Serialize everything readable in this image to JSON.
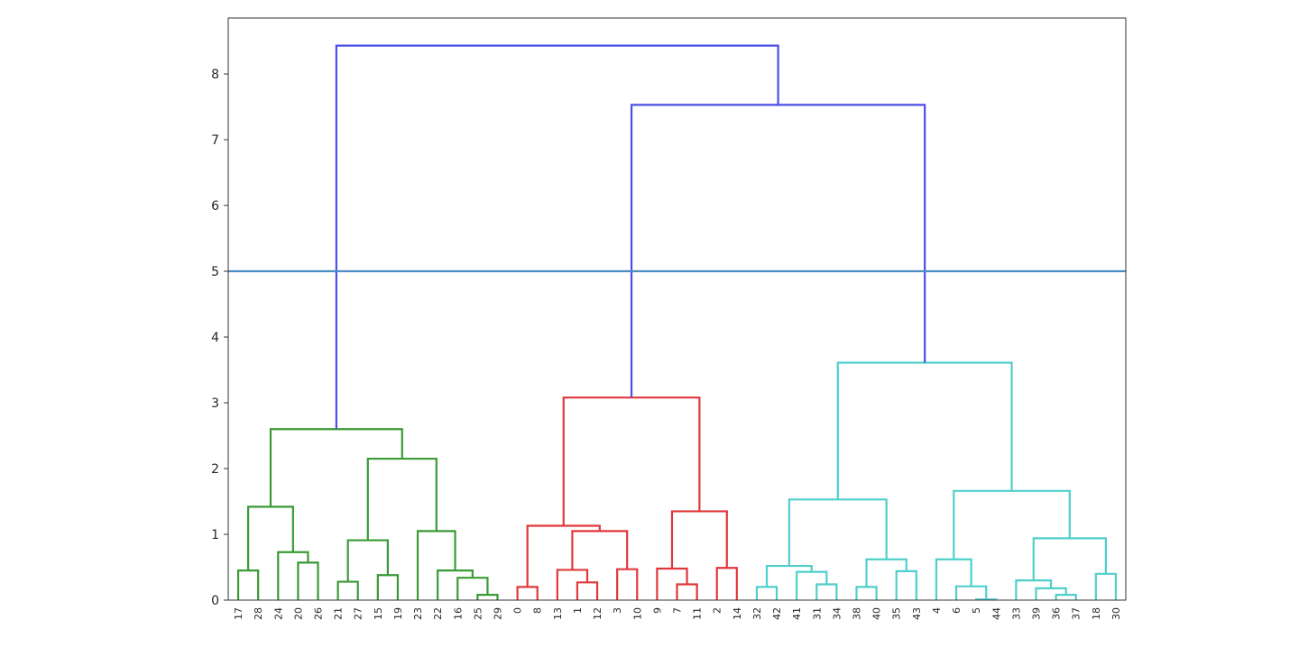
{
  "chart_data": {
    "type": "dendrogram",
    "title": "",
    "xlabel": "",
    "ylabel": "",
    "ylim": [
      0,
      8.85
    ],
    "y_ticks": [
      0,
      1,
      2,
      3,
      4,
      5,
      6,
      7,
      8
    ],
    "grid": false,
    "leaf_labels": [
      "17",
      "28",
      "24",
      "20",
      "26",
      "21",
      "27",
      "15",
      "19",
      "23",
      "22",
      "16",
      "25",
      "29",
      "0",
      "8",
      "13",
      "1",
      "12",
      "3",
      "10",
      "9",
      "7",
      "11",
      "2",
      "14",
      "32",
      "42",
      "41",
      "31",
      "34",
      "38",
      "40",
      "35",
      "43",
      "4",
      "6",
      "5",
      "44",
      "33",
      "39",
      "36",
      "37",
      "18",
      "30"
    ],
    "threshold_line": {
      "y": 5.0,
      "color": "#4c8dc4"
    },
    "cluster_colors": {
      "above_threshold": "#4b4fe6",
      "cluster_1": "#3a9a35",
      "cluster_2": "#e0383b",
      "cluster_3": "#4fcfcc"
    },
    "merges": [
      {
        "left": "17",
        "right": "28",
        "height": 0.45,
        "color": "cluster_1"
      },
      {
        "left": "20",
        "right": "26",
        "height": 0.57,
        "color": "cluster_1"
      },
      {
        "left": "24",
        "right": "20+26",
        "height": 0.73,
        "color": "cluster_1"
      },
      {
        "left": "17+28",
        "right": "24+20+26",
        "height": 1.42,
        "color": "cluster_1"
      },
      {
        "left": "21",
        "right": "27",
        "height": 0.28,
        "color": "cluster_1"
      },
      {
        "left": "15",
        "right": "19",
        "height": 0.38,
        "color": "cluster_1"
      },
      {
        "left": "21+27",
        "right": "15+19",
        "height": 0.91,
        "color": "cluster_1"
      },
      {
        "left": "25",
        "right": "29",
        "height": 0.08,
        "color": "cluster_1"
      },
      {
        "left": "16",
        "right": "25+29",
        "height": 0.34,
        "color": "cluster_1"
      },
      {
        "left": "22",
        "right": "16+25+29",
        "height": 0.45,
        "color": "cluster_1"
      },
      {
        "left": "23",
        "right": "22+16+25+29",
        "height": 1.05,
        "color": "cluster_1"
      },
      {
        "left": "21+27+15+19",
        "right": "23+22+16+25+29",
        "height": 2.15,
        "color": "cluster_1"
      },
      {
        "left": "17+28+24+20+26",
        "right": "21..29",
        "height": 2.6,
        "color": "cluster_1"
      },
      {
        "left": "0",
        "right": "8",
        "height": 0.2,
        "color": "cluster_2"
      },
      {
        "left": "1",
        "right": "12",
        "height": 0.27,
        "color": "cluster_2"
      },
      {
        "left": "13",
        "right": "1+12",
        "height": 0.46,
        "color": "cluster_2"
      },
      {
        "left": "3",
        "right": "10",
        "height": 0.47,
        "color": "cluster_2"
      },
      {
        "left": "13+1+12",
        "right": "3+10",
        "height": 1.05,
        "color": "cluster_2"
      },
      {
        "left": "0+8",
        "right": "13+1+12+3+10",
        "height": 1.13,
        "color": "cluster_2"
      },
      {
        "left": "7",
        "right": "11",
        "height": 0.24,
        "color": "cluster_2"
      },
      {
        "left": "9",
        "right": "7+11",
        "height": 0.48,
        "color": "cluster_2"
      },
      {
        "left": "2",
        "right": "14",
        "height": 0.49,
        "color": "cluster_2"
      },
      {
        "left": "9+7+11",
        "right": "2+14",
        "height": 1.35,
        "color": "cluster_2"
      },
      {
        "left": "0..10",
        "right": "9..14",
        "height": 3.08,
        "color": "cluster_2"
      },
      {
        "left": "32",
        "right": "42",
        "height": 0.2,
        "color": "cluster_3"
      },
      {
        "left": "31",
        "right": "34",
        "height": 0.24,
        "color": "cluster_3"
      },
      {
        "left": "41",
        "right": "31+34",
        "height": 0.43,
        "color": "cluster_3"
      },
      {
        "left": "32+42",
        "right": "41+31+34",
        "height": 0.52,
        "color": "cluster_3"
      },
      {
        "left": "38",
        "right": "40",
        "height": 0.2,
        "color": "cluster_3"
      },
      {
        "left": "35",
        "right": "43",
        "height": 0.44,
        "color": "cluster_3"
      },
      {
        "left": "38+40",
        "right": "35+43",
        "height": 0.62,
        "color": "cluster_3"
      },
      {
        "left": "32+42+41+31+34",
        "right": "38+40+35+43",
        "height": 1.53,
        "color": "cluster_3"
      },
      {
        "left": "5",
        "right": "44",
        "height": 0.01,
        "color": "cluster_3"
      },
      {
        "left": "6",
        "right": "5+44",
        "height": 0.21,
        "color": "cluster_3"
      },
      {
        "left": "4",
        "right": "6+5+44",
        "height": 0.62,
        "color": "cluster_3"
      },
      {
        "left": "36",
        "right": "37",
        "height": 0.08,
        "color": "cluster_3"
      },
      {
        "left": "39",
        "right": "36+37",
        "height": 0.18,
        "color": "cluster_3"
      },
      {
        "left": "33",
        "right": "39+36+37",
        "height": 0.3,
        "color": "cluster_3"
      },
      {
        "left": "18",
        "right": "30",
        "height": 0.4,
        "color": "cluster_3"
      },
      {
        "left": "33+39+36+37",
        "right": "18+30",
        "height": 0.94,
        "color": "cluster_3"
      },
      {
        "left": "4+6+5+44",
        "right": "33+39+36+37+18+30",
        "height": 1.66,
        "color": "cluster_3"
      },
      {
        "left": "32..43",
        "right": "4..30",
        "height": 3.61,
        "color": "cluster_3"
      },
      {
        "left": "0..14",
        "right": "32..30",
        "height": 7.53,
        "color": "above_threshold"
      },
      {
        "left": "17..29",
        "right": "0..30",
        "height": 8.43,
        "color": "above_threshold"
      }
    ]
  }
}
